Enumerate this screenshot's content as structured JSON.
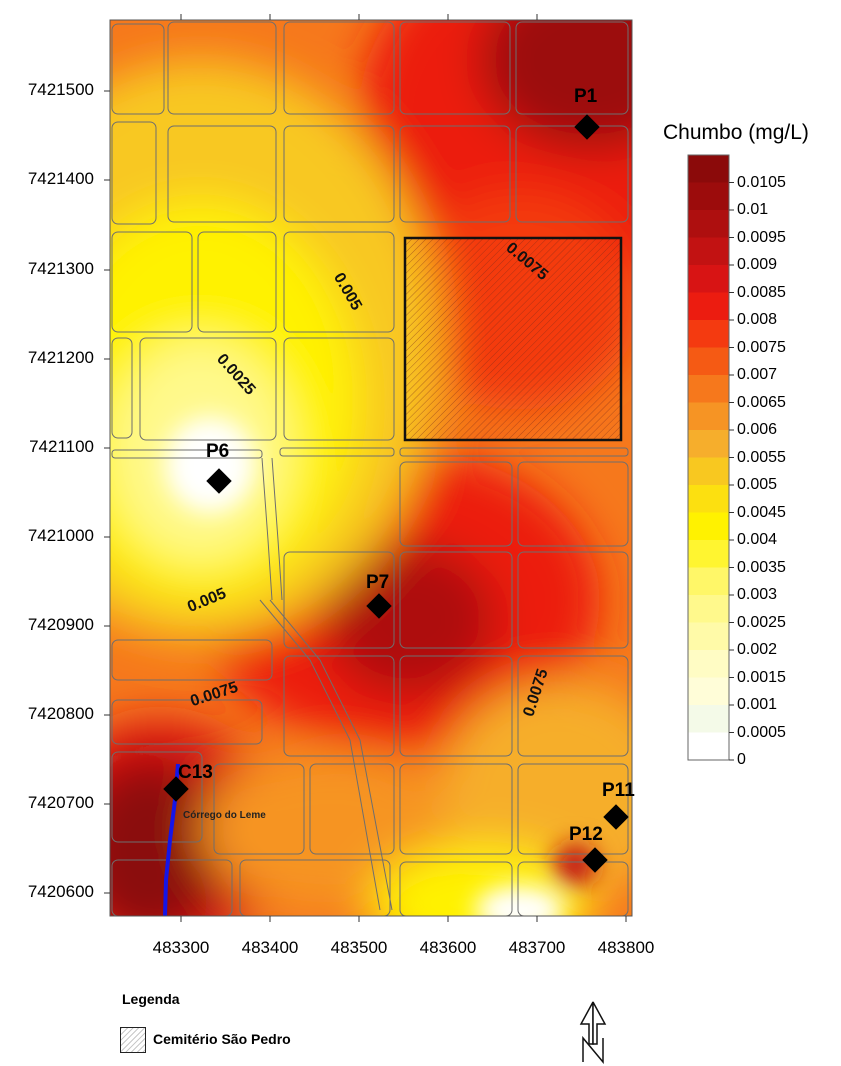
{
  "map": {
    "y_ticks": [
      "7421500",
      "7421400",
      "7421300",
      "7421200",
      "7421100",
      "7421000",
      "7420900",
      "7420800",
      "7420700",
      "7420600"
    ],
    "x_ticks": [
      "483300",
      "483400",
      "483500",
      "483600",
      "483700",
      "483800"
    ],
    "wells": [
      {
        "id": "P1",
        "label": "P1"
      },
      {
        "id": "P6",
        "label": "P6"
      },
      {
        "id": "P7",
        "label": "P7"
      },
      {
        "id": "C13",
        "label": "C13"
      },
      {
        "id": "P11",
        "label": "P11"
      },
      {
        "id": "P12",
        "label": "P12"
      }
    ],
    "contour_labels": [
      "0.0075",
      "0.005",
      "0.0025",
      "0.005",
      "0.0075",
      "0.0075"
    ],
    "stream_label": "Córrego do Leme"
  },
  "color_scale": {
    "title": "Chumbo (mg/L)",
    "levels": [
      "0.0105",
      "0.01",
      "0.0095",
      "0.009",
      "0.0085",
      "0.008",
      "0.0075",
      "0.007",
      "0.0065",
      "0.006",
      "0.0055",
      "0.005",
      "0.0045",
      "0.004",
      "0.0035",
      "0.003",
      "0.0025",
      "0.002",
      "0.0015",
      "0.001",
      "0.0005",
      "0"
    ],
    "colors": [
      "#8b0a0a",
      "#9c0c0c",
      "#ae0f0f",
      "#c21212",
      "#d81414",
      "#ec1c10",
      "#f43a10",
      "#f55a14",
      "#f6781c",
      "#f69424",
      "#f6ae2c",
      "#f8c820",
      "#fce010",
      "#fff200",
      "#fff530",
      "#fff768",
      "#fff98c",
      "#fffaa8",
      "#fffcc4",
      "#fffdd8",
      "#f4fae8",
      "#ffffff"
    ]
  },
  "legend": {
    "title": "Legenda",
    "item": "Cemitério São Pedro"
  },
  "north_arrow": "north-arrow-icon"
}
